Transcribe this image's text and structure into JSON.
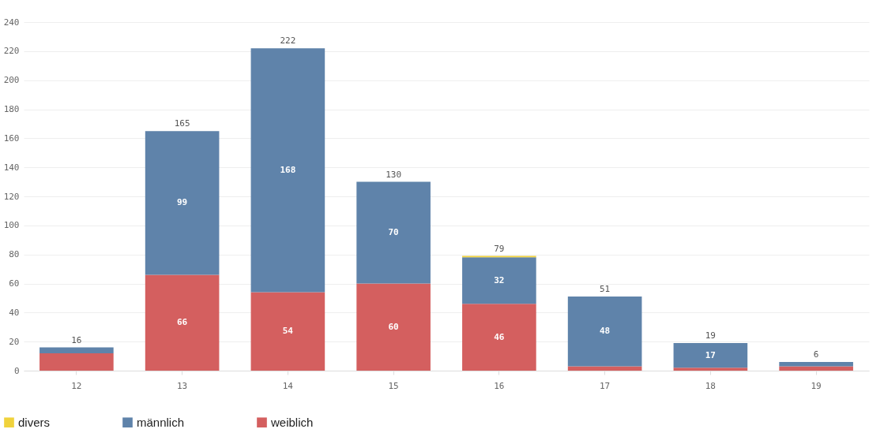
{
  "chart_data": {
    "type": "bar",
    "stacked": true,
    "categories": [
      "12",
      "13",
      "14",
      "15",
      "16",
      "17",
      "18",
      "19"
    ],
    "series": [
      {
        "name": "weiblich",
        "color": "#d45f5f",
        "values": [
          12,
          66,
          54,
          60,
          46,
          3,
          2,
          3
        ],
        "value_labels": [
          null,
          "66",
          "54",
          "60",
          "46",
          null,
          null,
          null
        ]
      },
      {
        "name": "männlich",
        "color": "#5f83aa",
        "values": [
          4,
          99,
          168,
          70,
          32,
          48,
          17,
          3
        ],
        "value_labels": [
          null,
          "99",
          "168",
          "70",
          "32",
          "48",
          "17",
          null
        ]
      },
      {
        "name": "divers",
        "color": "#f0d23c",
        "values": [
          0,
          0,
          0,
          0,
          1,
          0,
          0,
          0
        ]
      }
    ],
    "totals": [
      "16",
      "165",
      "222",
      "130",
      "79",
      "51",
      "19",
      "6"
    ],
    "ylim": [
      0,
      240
    ],
    "yticks": [
      0,
      20,
      40,
      60,
      80,
      100,
      120,
      140,
      160,
      180,
      200,
      220,
      240
    ],
    "grid": "y",
    "legend": "bottom left"
  }
}
